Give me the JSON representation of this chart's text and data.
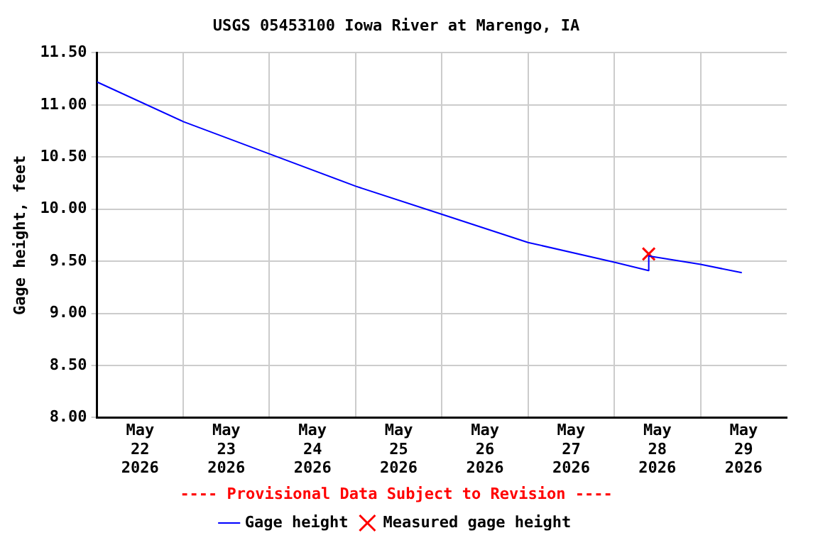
{
  "chart_data": {
    "type": "line",
    "title": "USGS 05453100 Iowa River at Marengo, IA",
    "ylabel": "Gage height, feet",
    "annotations": [
      "---- Provisional Data Subject to Revision ----"
    ],
    "series": [
      {
        "name": "Gage height",
        "color": "#0000ff",
        "marker": "none",
        "x": [
          "2026-05-22T00:00",
          "2026-05-23T00:00",
          "2026-05-24T00:00",
          "2026-05-25T00:00",
          "2026-05-26T00:00",
          "2026-05-27T00:00",
          "2026-05-28T00:00",
          "2026-05-28T09:30",
          "2026-05-28T09:35",
          "2026-05-29T00:00",
          "2026-05-29T11:30"
        ],
        "values": [
          11.22,
          10.84,
          10.53,
          10.22,
          9.95,
          9.68,
          9.49,
          9.41,
          9.55,
          9.47,
          9.39
        ]
      },
      {
        "name": "Measured gage height",
        "type": "scatter",
        "color": "#ff0000",
        "marker": "cross",
        "x": [
          "2026-05-28T09:35"
        ],
        "values": [
          9.57
        ]
      }
    ],
    "xlim": [
      "2026-05-22T00:00",
      "2026-05-30T00:00"
    ],
    "xticks": [
      {
        "value": "2026-05-22T12:00",
        "label": "May\n22\n2026"
      },
      {
        "value": "2026-05-23T00:00",
        "label": null
      },
      {
        "value": "2026-05-23T12:00",
        "label": "May\n23\n2026"
      },
      {
        "value": "2026-05-24T00:00",
        "label": null
      },
      {
        "value": "2026-05-24T12:00",
        "label": "May\n24\n2026"
      },
      {
        "value": "2026-05-25T00:00",
        "label": null
      },
      {
        "value": "2026-05-25T12:00",
        "label": "May\n25\n2026"
      },
      {
        "value": "2026-05-26T00:00",
        "label": null
      },
      {
        "value": "2026-05-26T12:00",
        "label": "May\n26\n2026"
      },
      {
        "value": "2026-05-27T00:00",
        "label": null
      },
      {
        "value": "2026-05-27T12:00",
        "label": "May\n27\n2026"
      },
      {
        "value": "2026-05-28T00:00",
        "label": null
      },
      {
        "value": "2026-05-28T12:00",
        "label": "May\n28\n2026"
      },
      {
        "value": "2026-05-29T00:00",
        "label": null
      },
      {
        "value": "2026-05-29T12:00",
        "label": "May\n29\n2026"
      }
    ],
    "ylim": [
      8.0,
      11.5
    ],
    "yticks": [
      {
        "value": 8.0,
        "label": "8.00"
      },
      {
        "value": 8.5,
        "label": "8.50"
      },
      {
        "value": 9.0,
        "label": "9.00"
      },
      {
        "value": 9.5,
        "label": "9.50"
      },
      {
        "value": 10.0,
        "label": "10.00"
      },
      {
        "value": 10.5,
        "label": "10.50"
      },
      {
        "value": 11.0,
        "label": "11.00"
      },
      {
        "value": 11.5,
        "label": "11.50"
      }
    ],
    "grid": true,
    "legend": "bottom"
  }
}
